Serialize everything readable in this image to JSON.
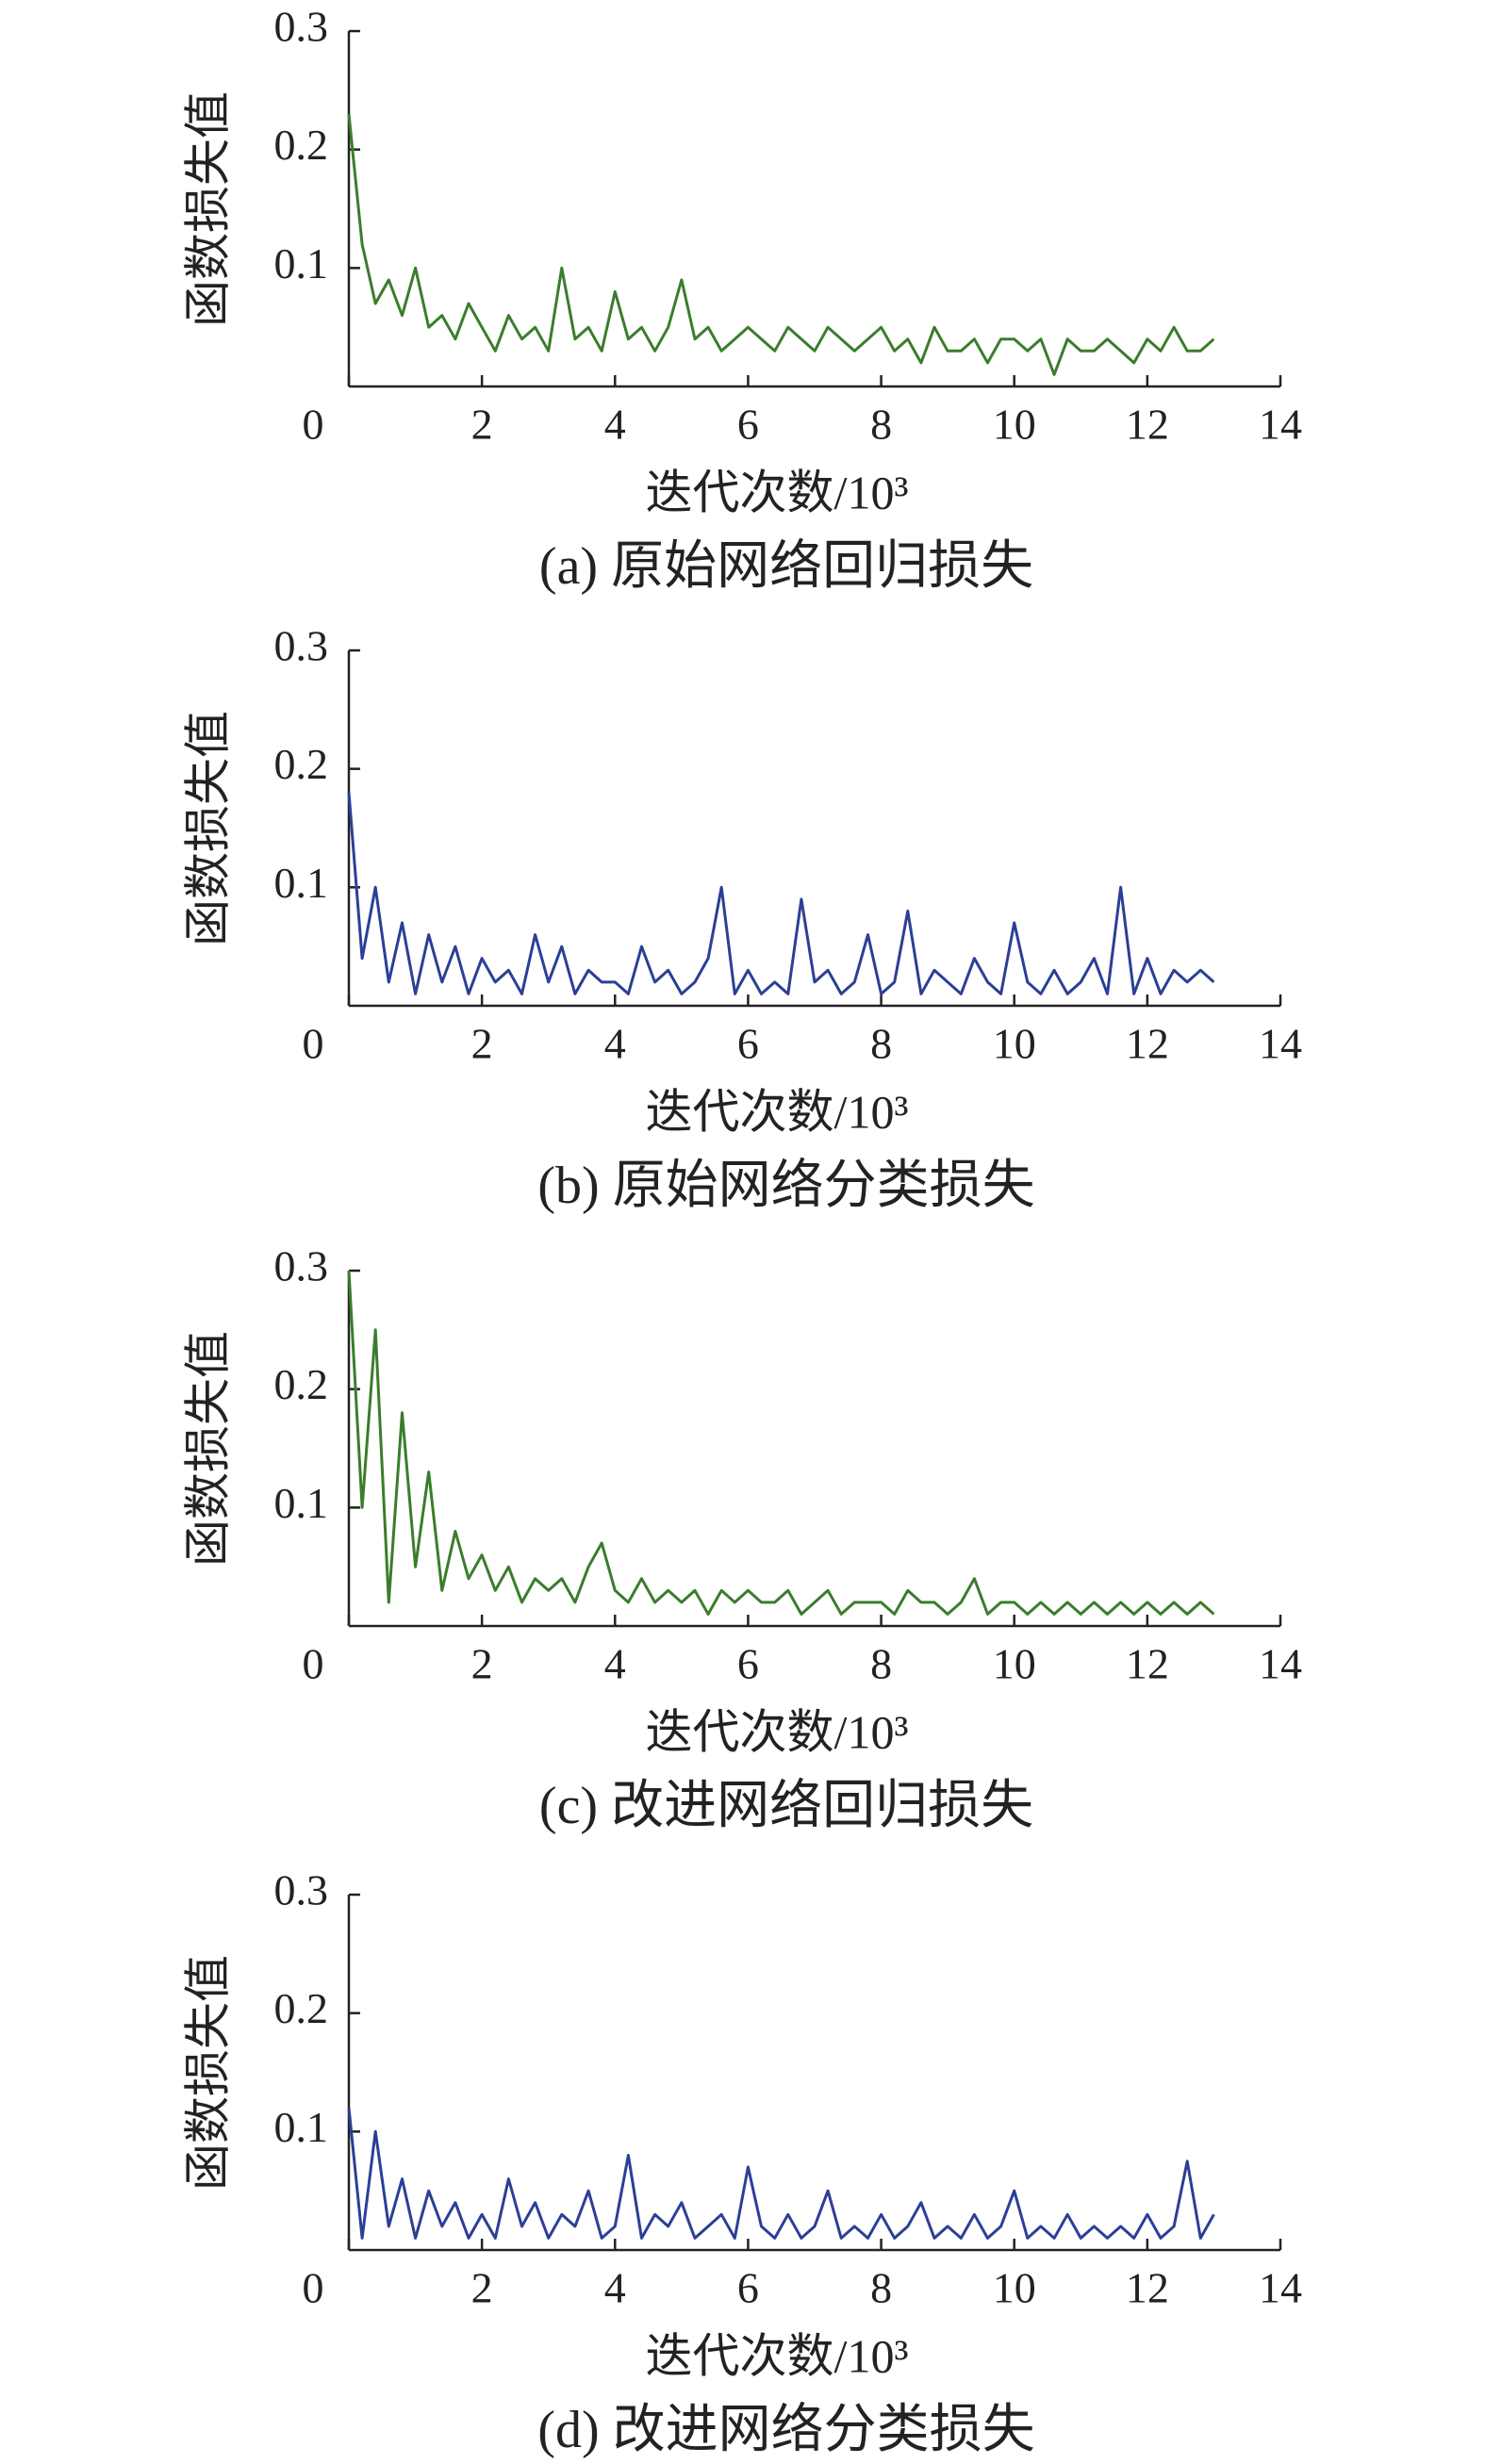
{
  "chart_data": [
    {
      "type": "line",
      "title": "(a) 原始网络回归损失",
      "xlabel": "迭代次数/10³",
      "ylabel": "函数损失值",
      "color": "#3a7d2c",
      "xlim": [
        0,
        14
      ],
      "ylim": [
        0,
        0.3
      ],
      "xticks": [
        0,
        2,
        4,
        6,
        8,
        10,
        12,
        14
      ],
      "yticks": [
        0.1,
        0.2,
        0.3
      ],
      "x": [
        0,
        0.2,
        0.4,
        0.6,
        0.8,
        1,
        1.2,
        1.4,
        1.6,
        1.8,
        2,
        2.2,
        2.4,
        2.6,
        2.8,
        3,
        3.2,
        3.4,
        3.6,
        3.8,
        4,
        4.2,
        4.4,
        4.6,
        4.8,
        5,
        5.2,
        5.4,
        5.6,
        5.8,
        6,
        6.2,
        6.4,
        6.6,
        6.8,
        7,
        7.2,
        7.4,
        7.6,
        7.8,
        8,
        8.2,
        8.4,
        8.6,
        8.8,
        9,
        9.2,
        9.4,
        9.6,
        9.8,
        10,
        10.2,
        10.4,
        10.6,
        10.8,
        11,
        11.2,
        11.4,
        11.6,
        11.8,
        12,
        12.2,
        12.4,
        12.6,
        12.8,
        13
      ],
      "values": [
        0.23,
        0.12,
        0.07,
        0.09,
        0.06,
        0.1,
        0.05,
        0.06,
        0.04,
        0.07,
        0.05,
        0.03,
        0.06,
        0.04,
        0.05,
        0.03,
        0.1,
        0.04,
        0.05,
        0.03,
        0.08,
        0.04,
        0.05,
        0.03,
        0.05,
        0.09,
        0.04,
        0.05,
        0.03,
        0.04,
        0.05,
        0.04,
        0.03,
        0.05,
        0.04,
        0.03,
        0.05,
        0.04,
        0.03,
        0.04,
        0.05,
        0.03,
        0.04,
        0.02,
        0.05,
        0.03,
        0.03,
        0.04,
        0.02,
        0.04,
        0.04,
        0.03,
        0.04,
        0.01,
        0.04,
        0.03,
        0.03,
        0.04,
        0.03,
        0.02,
        0.04,
        0.03,
        0.05,
        0.03,
        0.03,
        0.04
      ]
    },
    {
      "type": "line",
      "title": "(b) 原始网络分类损失",
      "xlabel": "迭代次数/10³",
      "ylabel": "函数损失值",
      "color": "#2b3f96",
      "xlim": [
        0,
        14
      ],
      "ylim": [
        0,
        0.3
      ],
      "xticks": [
        0,
        2,
        4,
        6,
        8,
        10,
        12,
        14
      ],
      "yticks": [
        0.1,
        0.2,
        0.3
      ],
      "x": [
        0,
        0.2,
        0.4,
        0.6,
        0.8,
        1,
        1.2,
        1.4,
        1.6,
        1.8,
        2,
        2.2,
        2.4,
        2.6,
        2.8,
        3,
        3.2,
        3.4,
        3.6,
        3.8,
        4,
        4.2,
        4.4,
        4.6,
        4.8,
        5,
        5.2,
        5.4,
        5.6,
        5.8,
        6,
        6.2,
        6.4,
        6.6,
        6.8,
        7,
        7.2,
        7.4,
        7.6,
        7.8,
        8,
        8.2,
        8.4,
        8.6,
        8.8,
        9,
        9.2,
        9.4,
        9.6,
        9.8,
        10,
        10.2,
        10.4,
        10.6,
        10.8,
        11,
        11.2,
        11.4,
        11.6,
        11.8,
        12,
        12.2,
        12.4,
        12.6,
        12.8,
        13
      ],
      "values": [
        0.18,
        0.04,
        0.1,
        0.02,
        0.07,
        0.01,
        0.06,
        0.02,
        0.05,
        0.01,
        0.04,
        0.02,
        0.03,
        0.01,
        0.06,
        0.02,
        0.05,
        0.01,
        0.03,
        0.02,
        0.02,
        0.01,
        0.05,
        0.02,
        0.03,
        0.01,
        0.02,
        0.04,
        0.1,
        0.01,
        0.03,
        0.01,
        0.02,
        0.01,
        0.09,
        0.02,
        0.03,
        0.01,
        0.02,
        0.06,
        0.01,
        0.02,
        0.08,
        0.01,
        0.03,
        0.02,
        0.01,
        0.04,
        0.02,
        0.01,
        0.07,
        0.02,
        0.01,
        0.03,
        0.01,
        0.02,
        0.04,
        0.01,
        0.1,
        0.01,
        0.04,
        0.01,
        0.03,
        0.02,
        0.03,
        0.02
      ]
    },
    {
      "type": "line",
      "title": "(c) 改进网络回归损失",
      "xlabel": "迭代次数/10³",
      "ylabel": "函数损失值",
      "color": "#3a7d2c",
      "xlim": [
        0,
        14
      ],
      "ylim": [
        0,
        0.3
      ],
      "xticks": [
        0,
        2,
        4,
        6,
        8,
        10,
        12,
        14
      ],
      "yticks": [
        0.1,
        0.2,
        0.3
      ],
      "x": [
        0,
        0.2,
        0.4,
        0.6,
        0.8,
        1,
        1.2,
        1.4,
        1.6,
        1.8,
        2,
        2.2,
        2.4,
        2.6,
        2.8,
        3,
        3.2,
        3.4,
        3.6,
        3.8,
        4,
        4.2,
        4.4,
        4.6,
        4.8,
        5,
        5.2,
        5.4,
        5.6,
        5.8,
        6,
        6.2,
        6.4,
        6.6,
        6.8,
        7,
        7.2,
        7.4,
        7.6,
        7.8,
        8,
        8.2,
        8.4,
        8.6,
        8.8,
        9,
        9.2,
        9.4,
        9.6,
        9.8,
        10,
        10.2,
        10.4,
        10.6,
        10.8,
        11,
        11.2,
        11.4,
        11.6,
        11.8,
        12,
        12.2,
        12.4,
        12.6,
        12.8,
        13
      ],
      "values": [
        0.3,
        0.1,
        0.25,
        0.02,
        0.18,
        0.05,
        0.13,
        0.03,
        0.08,
        0.04,
        0.06,
        0.03,
        0.05,
        0.02,
        0.04,
        0.03,
        0.04,
        0.02,
        0.05,
        0.07,
        0.03,
        0.02,
        0.04,
        0.02,
        0.03,
        0.02,
        0.03,
        0.01,
        0.03,
        0.02,
        0.03,
        0.02,
        0.02,
        0.03,
        0.01,
        0.02,
        0.03,
        0.01,
        0.02,
        0.02,
        0.02,
        0.01,
        0.03,
        0.02,
        0.02,
        0.01,
        0.02,
        0.04,
        0.01,
        0.02,
        0.02,
        0.01,
        0.02,
        0.01,
        0.02,
        0.01,
        0.02,
        0.01,
        0.02,
        0.01,
        0.02,
        0.01,
        0.02,
        0.01,
        0.02,
        0.01
      ]
    },
    {
      "type": "line",
      "title": "(d) 改进网络分类损失",
      "xlabel": "迭代次数/10³",
      "ylabel": "函数损失值",
      "color": "#2b3f96",
      "xlim": [
        0,
        14
      ],
      "ylim": [
        0,
        0.3
      ],
      "xticks": [
        0,
        2,
        4,
        6,
        8,
        10,
        12,
        14
      ],
      "yticks": [
        0.1,
        0.2,
        0.3
      ],
      "x": [
        0,
        0.2,
        0.4,
        0.6,
        0.8,
        1,
        1.2,
        1.4,
        1.6,
        1.8,
        2,
        2.2,
        2.4,
        2.6,
        2.8,
        3,
        3.2,
        3.4,
        3.6,
        3.8,
        4,
        4.2,
        4.4,
        4.6,
        4.8,
        5,
        5.2,
        5.4,
        5.6,
        5.8,
        6,
        6.2,
        6.4,
        6.6,
        6.8,
        7,
        7.2,
        7.4,
        7.6,
        7.8,
        8,
        8.2,
        8.4,
        8.6,
        8.8,
        9,
        9.2,
        9.4,
        9.6,
        9.8,
        10,
        10.2,
        10.4,
        10.6,
        10.8,
        11,
        11.2,
        11.4,
        11.6,
        11.8,
        12,
        12.2,
        12.4,
        12.6,
        12.8,
        13
      ],
      "values": [
        0.12,
        0.01,
        0.1,
        0.02,
        0.06,
        0.01,
        0.05,
        0.02,
        0.04,
        0.01,
        0.03,
        0.01,
        0.06,
        0.02,
        0.04,
        0.01,
        0.03,
        0.02,
        0.05,
        0.01,
        0.02,
        0.08,
        0.01,
        0.03,
        0.02,
        0.04,
        0.01,
        0.02,
        0.03,
        0.01,
        0.07,
        0.02,
        0.01,
        0.03,
        0.01,
        0.02,
        0.05,
        0.01,
        0.02,
        0.01,
        0.03,
        0.01,
        0.02,
        0.04,
        0.01,
        0.02,
        0.01,
        0.03,
        0.01,
        0.02,
        0.05,
        0.01,
        0.02,
        0.01,
        0.03,
        0.01,
        0.02,
        0.01,
        0.02,
        0.01,
        0.03,
        0.01,
        0.02,
        0.075,
        0.01,
        0.03
      ]
    }
  ]
}
